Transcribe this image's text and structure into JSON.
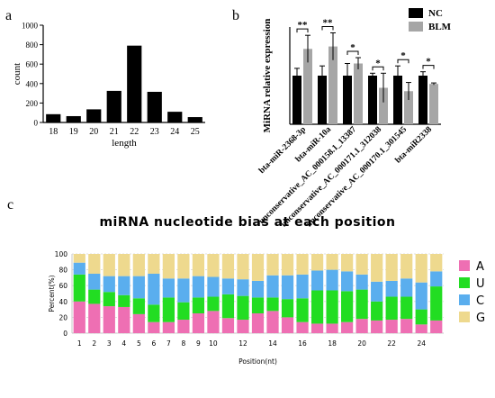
{
  "panel_labels": {
    "a": "a",
    "b": "b",
    "c": "c"
  },
  "chart_data": [
    {
      "panel": "a",
      "type": "bar",
      "title": "",
      "xlabel": "length",
      "ylabel": "count",
      "categories": [
        "18",
        "19",
        "20",
        "21",
        "22",
        "23",
        "24",
        "25"
      ],
      "values": [
        85,
        65,
        135,
        325,
        790,
        315,
        110,
        55
      ],
      "ylim": [
        0,
        1000
      ],
      "yticks": [
        "0",
        "200",
        "400",
        "600",
        "800",
        "1000"
      ],
      "bar_color": "#000000"
    },
    {
      "panel": "b",
      "type": "bar",
      "title": "",
      "xlabel": "",
      "ylabel": "MiRNA relative expression",
      "categories": [
        "bta-miR-2368-3p",
        "bta-miR-10a",
        "unconservative_AC_000158.1_13387",
        "unconservative_AC_000171.1_312038",
        "unconservative_AC_000170.1_301545",
        "bta-miR2338"
      ],
      "series": [
        {
          "name": "NC",
          "color": "#000000",
          "values": [
            1.0,
            1.0,
            1.0,
            1.0,
            1.0,
            1.0
          ],
          "errors": [
            0.15,
            0.2,
            0.25,
            0.05,
            0.2,
            0.08
          ]
        },
        {
          "name": "BLM",
          "color": "#a6a6a6",
          "values": [
            1.55,
            1.6,
            1.25,
            0.75,
            0.68,
            0.83
          ],
          "errors": [
            0.28,
            0.28,
            0.12,
            0.3,
            0.18,
            0.02
          ]
        }
      ],
      "significance": [
        "**",
        "**",
        "*",
        "*",
        "*",
        "*"
      ],
      "ylim": [
        0,
        2.0
      ],
      "legend": "top-right"
    },
    {
      "panel": "c",
      "type": "bar",
      "stacked": true,
      "title": "miRNA nucleotide bias at each position",
      "xlabel": "Position(nt)",
      "ylabel": "Percent(%)",
      "ylim": [
        0,
        100
      ],
      "yticks": [
        "0",
        "20",
        "40",
        "60",
        "80",
        "100"
      ],
      "x": [
        1,
        2,
        3,
        4,
        5,
        6,
        7,
        8,
        9,
        10,
        11,
        12,
        13,
        14,
        15,
        16,
        17,
        18,
        19,
        20,
        21,
        22,
        23,
        24,
        25
      ],
      "xticks_shown": [
        "1",
        "2",
        "3",
        "4",
        "5",
        "6",
        "7",
        "8",
        "9",
        "10",
        "12",
        "14",
        "16",
        "18",
        "20",
        "22",
        "24"
      ],
      "legend": "right",
      "series": [
        {
          "name": "A",
          "color": "#ee6fb3",
          "values": [
            40,
            37,
            34,
            33,
            24,
            14,
            14,
            17,
            25,
            28,
            19,
            17,
            25,
            28,
            20,
            14,
            12,
            12,
            14,
            18,
            16,
            17,
            18,
            11,
            16
          ]
        },
        {
          "name": "U",
          "color": "#22dd22",
          "values": [
            34,
            18,
            18,
            15,
            20,
            22,
            31,
            22,
            20,
            18,
            30,
            30,
            20,
            17,
            23,
            30,
            42,
            42,
            39,
            37,
            24,
            29,
            28,
            19,
            43
          ]
        },
        {
          "name": "C",
          "color": "#5aaeee",
          "values": [
            15,
            20,
            20,
            24,
            28,
            39,
            24,
            30,
            27,
            25,
            20,
            21,
            21,
            28,
            30,
            30,
            25,
            26,
            25,
            19,
            25,
            20,
            23,
            34,
            19
          ]
        },
        {
          "name": "G",
          "color": "#eed98e",
          "values": [
            11,
            25,
            28,
            28,
            28,
            25,
            31,
            31,
            28,
            29,
            31,
            32,
            34,
            27,
            27,
            26,
            21,
            20,
            22,
            26,
            35,
            34,
            31,
            36,
            22
          ]
        }
      ]
    }
  ]
}
